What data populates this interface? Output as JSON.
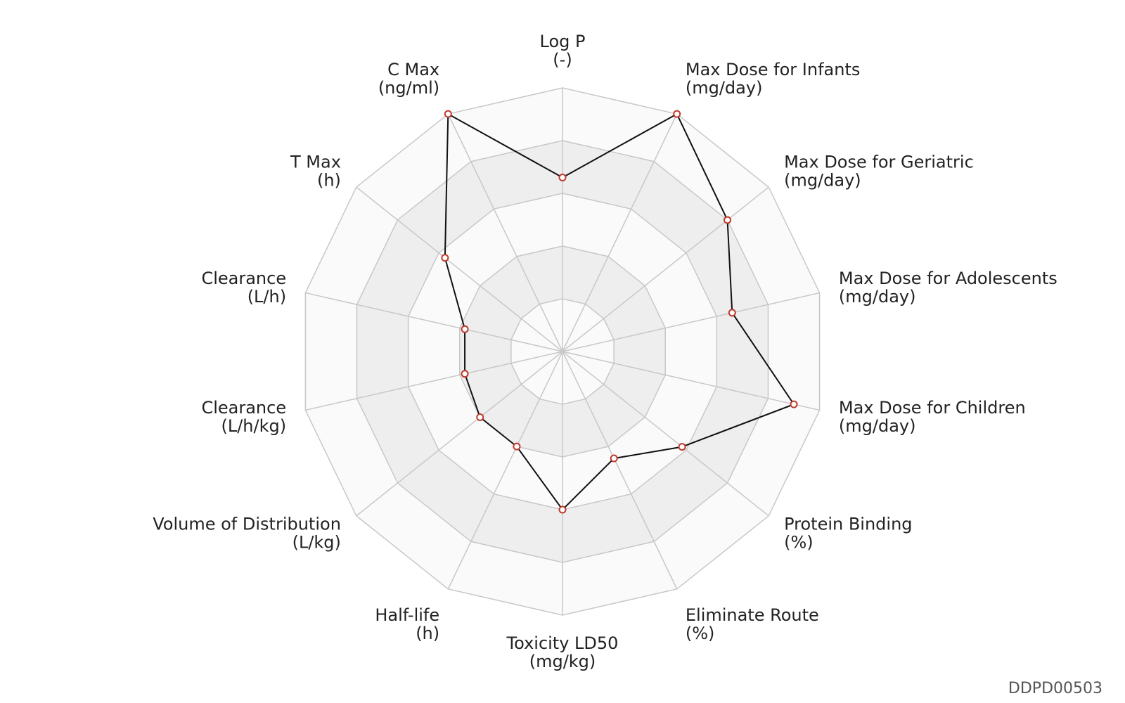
{
  "chart_data": {
    "type": "radar",
    "axes": [
      {
        "name": "Log P",
        "unit": "(-)"
      },
      {
        "name": "Max Dose for Infants",
        "unit": "(mg/day)"
      },
      {
        "name": "Max Dose for Geriatric",
        "unit": "(mg/day)"
      },
      {
        "name": "Max Dose for Adolescents",
        "unit": "(mg/day)"
      },
      {
        "name": "Max Dose for Children",
        "unit": "(mg/day)"
      },
      {
        "name": "Protein Binding",
        "unit": "(%)"
      },
      {
        "name": "Eliminate Route",
        "unit": "(%)"
      },
      {
        "name": "Toxicity LD50",
        "unit": "(mg/kg)"
      },
      {
        "name": "Half-life",
        "unit": "(h)"
      },
      {
        "name": "Volume of Distribution",
        "unit": "(L/kg)"
      },
      {
        "name": "Clearance",
        "unit": "(L/h/kg)"
      },
      {
        "name": "Clearance",
        "unit": "(L/h)"
      },
      {
        "name": "T Max",
        "unit": "(h)"
      },
      {
        "name": "C Max",
        "unit": "(ng/ml)"
      }
    ],
    "series": [
      {
        "values": [
          0.66,
          1.0,
          0.8,
          0.66,
          0.9,
          0.58,
          0.45,
          0.6,
          0.4,
          0.4,
          0.38,
          0.38,
          0.57,
          1.0
        ]
      }
    ],
    "rlim": [
      0,
      1
    ],
    "rings": 5,
    "alternate_band_fill": true,
    "colors": {
      "grid": "#c8c8c8",
      "band": "#eeeeee",
      "band_light": "#fafafa",
      "line": "#111111",
      "marker": "#c0392b"
    }
  },
  "chart_id": "DDPD00503"
}
